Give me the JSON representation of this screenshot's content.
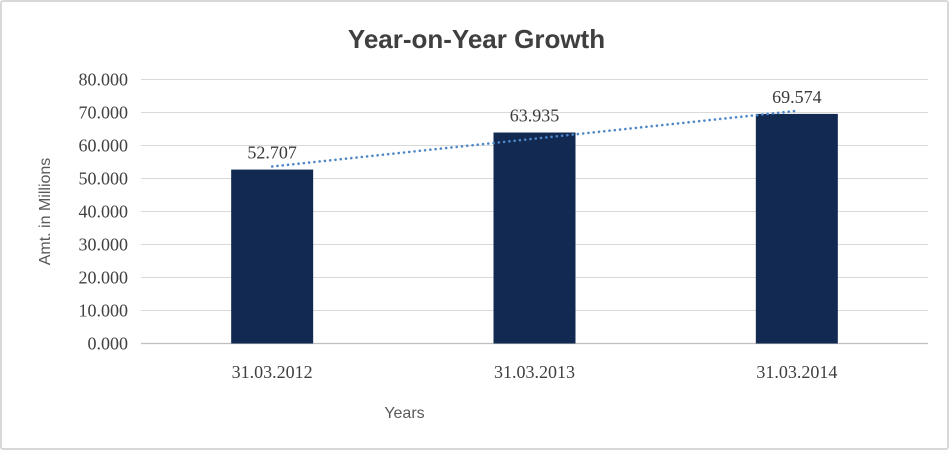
{
  "chart_data": {
    "type": "bar",
    "title": "Year-on-Year Growth",
    "xlabel": "Years",
    "ylabel": "Amt. in Millions",
    "categories": [
      "31.03.2012",
      "31.03.2013",
      "31.03.2014"
    ],
    "values": [
      52.707,
      63.935,
      69.574
    ],
    "data_labels": [
      "52.707",
      "63.935",
      "69.574"
    ],
    "ytick_labels": [
      "0.000",
      "10.000",
      "20.000",
      "30.000",
      "40.000",
      "50.000",
      "60.000",
      "70.000",
      "80.000"
    ],
    "ylim": [
      0,
      80
    ],
    "ytick_step": 10,
    "grid": true,
    "legend_position": "none",
    "trendline": {
      "type": "linear",
      "style": "dotted"
    },
    "colors": {
      "bar_fill": "#122a52",
      "trendline": "#4e87c8",
      "gridline": "#d9d9d9",
      "axis_line": "#bfbfbf",
      "tick_text": "#404040",
      "data_label_text": "#3a3a3a",
      "axis_title_text": "#595959",
      "title_text": "#3f3f3f"
    }
  }
}
